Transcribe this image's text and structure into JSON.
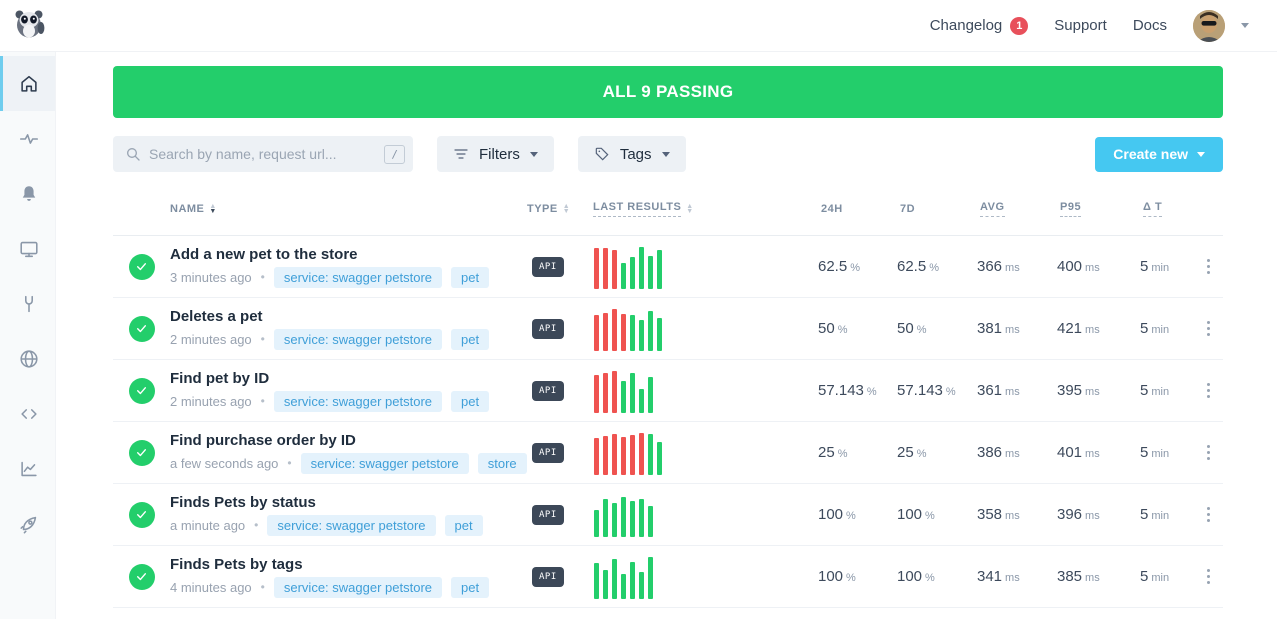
{
  "colors": {
    "banner_green": "#23ce6b",
    "bar_red": "#ef5350",
    "bar_green": "#23ce6b",
    "create_blue": "#45c8f1",
    "badge_red": "#e8505b",
    "type_badge_bg": "#3c4858",
    "tag_pill_bg": "#e4f2fc",
    "tag_pill_text": "#3f9fd8"
  },
  "topbar": {
    "changelog_label": "Changelog",
    "changelog_badge": "1",
    "support_label": "Support",
    "docs_label": "Docs"
  },
  "banner": {
    "text": "ALL 9 PASSING"
  },
  "toolbar": {
    "search_placeholder": "Search by name, request url...",
    "search_shortcut": "/",
    "filters_label": "Filters",
    "tags_label": "Tags",
    "create_label": "Create new"
  },
  "sidebar": {
    "items": [
      "home",
      "activity",
      "alerts",
      "dashboards",
      "maintenance",
      "locations",
      "snippets",
      "analytics",
      "quickstart"
    ]
  },
  "table": {
    "headers": [
      {
        "label": "NAME"
      },
      {
        "label": "TYPE"
      },
      {
        "label": "LAST RESULTS"
      },
      {
        "label": "24H"
      },
      {
        "label": "7D"
      },
      {
        "label": "AVG"
      },
      {
        "label": "P95"
      },
      {
        "label": "Δ T"
      }
    ],
    "separator": "•",
    "rows": [
      {
        "name": "Add a new pet to the store",
        "time": "3 minutes ago",
        "tags": [
          "service: swagger petstore",
          "pet"
        ],
        "type": "API",
        "bars": [
          [
            "red",
            41
          ],
          [
            "red",
            41
          ],
          [
            "red",
            39
          ],
          [
            "green",
            26
          ],
          [
            "green",
            32
          ],
          [
            "green",
            42
          ],
          [
            "green",
            33
          ],
          [
            "green",
            39
          ]
        ],
        "h24": {
          "v": "62.5",
          "u": "%"
        },
        "d7": {
          "v": "62.5",
          "u": "%"
        },
        "avg": {
          "v": "366",
          "u": "ms"
        },
        "p95": {
          "v": "400",
          "u": "ms"
        },
        "dt": {
          "v": "5",
          "u": "min"
        }
      },
      {
        "name": "Deletes a pet",
        "time": "2 minutes ago",
        "tags": [
          "service: swagger petstore",
          "pet"
        ],
        "type": "API",
        "bars": [
          [
            "red",
            36
          ],
          [
            "red",
            38
          ],
          [
            "red",
            42
          ],
          [
            "red",
            37
          ],
          [
            "green",
            36
          ],
          [
            "green",
            31
          ],
          [
            "green",
            40
          ],
          [
            "green",
            33
          ]
        ],
        "h24": {
          "v": "50",
          "u": "%"
        },
        "d7": {
          "v": "50",
          "u": "%"
        },
        "avg": {
          "v": "381",
          "u": "ms"
        },
        "p95": {
          "v": "421",
          "u": "ms"
        },
        "dt": {
          "v": "5",
          "u": "min"
        }
      },
      {
        "name": "Find pet by ID",
        "time": "2 minutes ago",
        "tags": [
          "service: swagger petstore",
          "pet"
        ],
        "type": "API",
        "bars": [
          [
            "red",
            38
          ],
          [
            "red",
            40
          ],
          [
            "red",
            42
          ],
          [
            "green",
            32
          ],
          [
            "green",
            40
          ],
          [
            "green",
            24
          ],
          [
            "green",
            36
          ]
        ],
        "h24": {
          "v": "57.143",
          "u": "%"
        },
        "d7": {
          "v": "57.143",
          "u": "%"
        },
        "avg": {
          "v": "361",
          "u": "ms"
        },
        "p95": {
          "v": "395",
          "u": "ms"
        },
        "dt": {
          "v": "5",
          "u": "min"
        }
      },
      {
        "name": "Find purchase order by ID",
        "time": "a few seconds ago",
        "tags": [
          "service: swagger petstore",
          "store"
        ],
        "type": "API",
        "bars": [
          [
            "red",
            37
          ],
          [
            "red",
            39
          ],
          [
            "red",
            41
          ],
          [
            "red",
            38
          ],
          [
            "red",
            40
          ],
          [
            "red",
            42
          ],
          [
            "green",
            41
          ],
          [
            "green",
            33
          ]
        ],
        "h24": {
          "v": "25",
          "u": "%"
        },
        "d7": {
          "v": "25",
          "u": "%"
        },
        "avg": {
          "v": "386",
          "u": "ms"
        },
        "p95": {
          "v": "401",
          "u": "ms"
        },
        "dt": {
          "v": "5",
          "u": "min"
        }
      },
      {
        "name": "Finds Pets by status",
        "time": "a minute ago",
        "tags": [
          "service: swagger petstore",
          "pet"
        ],
        "type": "API",
        "bars": [
          [
            "green",
            27
          ],
          [
            "green",
            38
          ],
          [
            "green",
            34
          ],
          [
            "green",
            40
          ],
          [
            "green",
            36
          ],
          [
            "green",
            38
          ],
          [
            "green",
            31
          ]
        ],
        "h24": {
          "v": "100",
          "u": "%"
        },
        "d7": {
          "v": "100",
          "u": "%"
        },
        "avg": {
          "v": "358",
          "u": "ms"
        },
        "p95": {
          "v": "396",
          "u": "ms"
        },
        "dt": {
          "v": "5",
          "u": "min"
        }
      },
      {
        "name": "Finds Pets by tags",
        "time": "4 minutes ago",
        "tags": [
          "service: swagger petstore",
          "pet"
        ],
        "type": "API",
        "bars": [
          [
            "green",
            36
          ],
          [
            "green",
            29
          ],
          [
            "green",
            40
          ],
          [
            "green",
            25
          ],
          [
            "green",
            37
          ],
          [
            "green",
            27
          ],
          [
            "green",
            42
          ]
        ],
        "h24": {
          "v": "100",
          "u": "%"
        },
        "d7": {
          "v": "100",
          "u": "%"
        },
        "avg": {
          "v": "341",
          "u": "ms"
        },
        "p95": {
          "v": "385",
          "u": "ms"
        },
        "dt": {
          "v": "5",
          "u": "min"
        }
      }
    ]
  }
}
